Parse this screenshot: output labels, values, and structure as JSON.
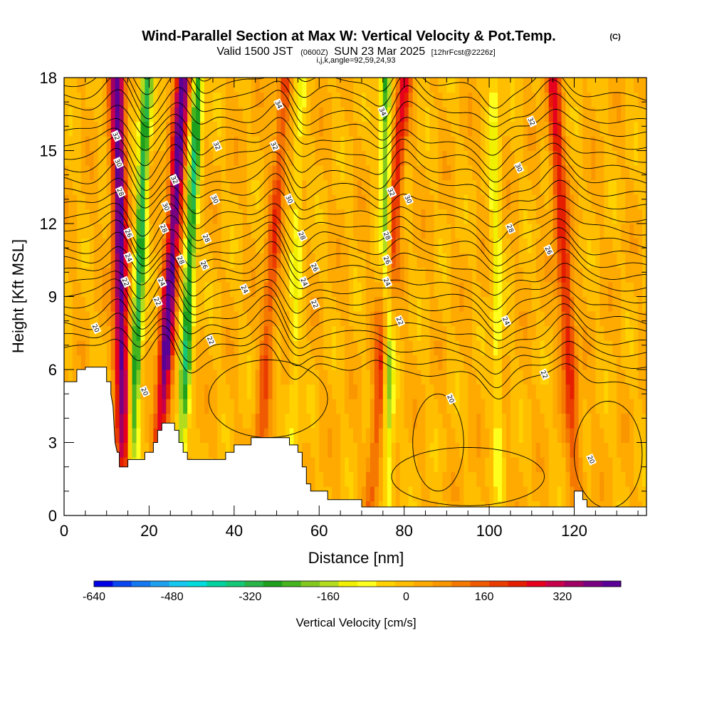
{
  "header": {
    "title": "Wind-Parallel Section at Max W: Vertical Velocity & Pot.Temp.",
    "title_badge": "(C)",
    "valid_prefix": "Valid 1500 JST",
    "valid_zulu": "(0600Z)",
    "valid_date": "SUN 23 Mar 2025",
    "valid_fcst": "[12hrFcst@2226z]",
    "indices": "i,j,k,angle=92,59,24,93"
  },
  "colorbar": {
    "label": "Vertical Velocity [cm/s]",
    "tick_labels": [
      "-640",
      "-480",
      "-320",
      "-160",
      "0",
      "160",
      "320"
    ],
    "tick_values": [
      -640,
      -480,
      -320,
      -160,
      0,
      160,
      320
    ],
    "range": [
      -640,
      440
    ],
    "colors": [
      "#0000e6",
      "#0a46f0",
      "#1478f0",
      "#1ea0f0",
      "#14c8f0",
      "#00dcdc",
      "#00d2a0",
      "#14c878",
      "#28b446",
      "#1ea01e",
      "#46b41e",
      "#82c81e",
      "#b4dc1e",
      "#f0f000",
      "#ffff1e",
      "#ffd200",
      "#ffbe00",
      "#ffaa00",
      "#fa9600",
      "#f57800",
      "#f05a00",
      "#eb3c00",
      "#e61e00",
      "#e6001e",
      "#c8004b",
      "#a00064",
      "#7a0082",
      "#5a0096"
    ]
  },
  "chart_data": {
    "type": "heatmap",
    "title": "Wind-Parallel Section at Max W: Vertical Velocity & Pot.Temp.",
    "xlabel": "Distance [nm]",
    "ylabel": "Height [Kft MSL]",
    "xlim": [
      0,
      137
    ],
    "ylim": [
      0,
      18
    ],
    "x_ticks": [
      0,
      20,
      40,
      60,
      80,
      100,
      120
    ],
    "x_tick_labels": [
      "0",
      "20",
      "40",
      "60",
      "80",
      "100",
      "120"
    ],
    "y_ticks": [
      0,
      3,
      6,
      9,
      12,
      15,
      18
    ],
    "y_tick_labels": [
      "0",
      "3",
      "6",
      "9",
      "12",
      "15",
      "18"
    ],
    "grid": false,
    "terrain": [
      [
        0,
        5.5
      ],
      [
        3,
        5.5
      ],
      [
        3,
        6.0
      ],
      [
        5,
        6.0
      ],
      [
        5,
        6.1
      ],
      [
        10,
        6.1
      ],
      [
        10,
        5.5
      ],
      [
        11,
        5.5
      ],
      [
        11,
        5.0
      ],
      [
        11.5,
        4.5
      ],
      [
        12,
        3.0
      ],
      [
        12.5,
        2.6
      ],
      [
        13,
        2.6
      ],
      [
        13,
        2.0
      ],
      [
        15,
        2.0
      ],
      [
        15,
        2.3
      ],
      [
        19,
        2.3
      ],
      [
        19,
        2.6
      ],
      [
        21,
        2.6
      ],
      [
        21,
        3.0
      ],
      [
        22,
        3.0
      ],
      [
        22,
        3.5
      ],
      [
        23,
        3.5
      ],
      [
        23,
        3.8
      ],
      [
        26,
        3.8
      ],
      [
        26,
        3.5
      ],
      [
        27,
        3.5
      ],
      [
        27,
        3.0
      ],
      [
        28,
        3.0
      ],
      [
        28,
        2.6
      ],
      [
        29,
        2.6
      ],
      [
        29,
        2.3
      ],
      [
        38,
        2.3
      ],
      [
        38,
        2.6
      ],
      [
        40,
        2.6
      ],
      [
        40,
        2.9
      ],
      [
        44,
        2.9
      ],
      [
        44,
        3.2
      ],
      [
        53,
        3.2
      ],
      [
        53,
        2.9
      ],
      [
        55,
        2.9
      ],
      [
        55,
        2.6
      ],
      [
        56,
        2.6
      ],
      [
        56,
        2.0
      ],
      [
        57,
        2.0
      ],
      [
        57,
        1.3
      ],
      [
        58,
        1.3
      ],
      [
        58,
        1.0
      ],
      [
        62,
        1.0
      ],
      [
        62,
        0.65
      ],
      [
        70,
        0.65
      ],
      [
        70,
        0.35
      ],
      [
        120,
        0.35
      ],
      [
        120,
        1.0
      ],
      [
        122,
        1.0
      ],
      [
        122,
        0.65
      ],
      [
        123,
        0.65
      ],
      [
        123,
        0.35
      ],
      [
        137,
        0.35
      ]
    ],
    "updraft_bands": [
      {
        "x_top": 12.5,
        "x_bottom": 14.2,
        "peak_cms": 420
      },
      {
        "x_top": 28.0,
        "x_bottom": 21.5,
        "peak_cms": 420
      },
      {
        "x_top": 52.0,
        "x_bottom": 45.0,
        "peak_cms": 160
      },
      {
        "x_top": 80.0,
        "x_bottom": 72.0,
        "peak_cms": 230
      },
      {
        "x_top": 115.0,
        "x_bottom": 121.0,
        "peak_cms": 230
      }
    ],
    "downdraft_bands": [
      {
        "x_top": 19.5,
        "x_bottom": 15.5,
        "min_cms": -330
      },
      {
        "x_top": 31.5,
        "x_bottom": 27.0,
        "min_cms": -330
      },
      {
        "x_top": 75.5,
        "x_bottom": 76.5,
        "min_cms": -270
      },
      {
        "x_top": 55.5,
        "x_bottom": 53.5,
        "min_cms": -100
      },
      {
        "x_top": 101.0,
        "x_bottom": 102.5,
        "min_cms": -120
      }
    ],
    "contour_labels": [
      {
        "text": "34",
        "x": 50.5,
        "y": 16.9
      },
      {
        "text": "34",
        "x": 75.0,
        "y": 16.6
      },
      {
        "text": "32",
        "x": 12.3,
        "y": 15.6
      },
      {
        "text": "32",
        "x": 36.0,
        "y": 15.2
      },
      {
        "text": "32",
        "x": 49.5,
        "y": 15.2
      },
      {
        "text": "32",
        "x": 110.0,
        "y": 16.2
      },
      {
        "text": "32",
        "x": 26.0,
        "y": 13.8
      },
      {
        "text": "32",
        "x": 77.0,
        "y": 13.3
      },
      {
        "text": "30",
        "x": 12.8,
        "y": 14.5
      },
      {
        "text": "30",
        "x": 35.5,
        "y": 13.0
      },
      {
        "text": "30",
        "x": 53.0,
        "y": 13.0
      },
      {
        "text": "30",
        "x": 81.0,
        "y": 13.0
      },
      {
        "text": "30",
        "x": 107.0,
        "y": 14.3
      },
      {
        "text": "30",
        "x": 24.0,
        "y": 12.7
      },
      {
        "text": "28",
        "x": 13.3,
        "y": 13.3
      },
      {
        "text": "28",
        "x": 23.5,
        "y": 11.8
      },
      {
        "text": "28",
        "x": 33.5,
        "y": 11.4
      },
      {
        "text": "28",
        "x": 56.0,
        "y": 11.5
      },
      {
        "text": "28",
        "x": 76.0,
        "y": 11.5
      },
      {
        "text": "28",
        "x": 105.0,
        "y": 11.8
      },
      {
        "text": "28",
        "x": 27.5,
        "y": 10.5
      },
      {
        "text": "26",
        "x": 15.2,
        "y": 11.6
      },
      {
        "text": "26",
        "x": 33.0,
        "y": 10.3
      },
      {
        "text": "26",
        "x": 59.0,
        "y": 10.2
      },
      {
        "text": "26",
        "x": 76.0,
        "y": 10.5
      },
      {
        "text": "26",
        "x": 114.0,
        "y": 10.9
      },
      {
        "text": "24",
        "x": 15.2,
        "y": 10.6
      },
      {
        "text": "24",
        "x": 23.0,
        "y": 9.6
      },
      {
        "text": "24",
        "x": 42.5,
        "y": 9.3
      },
      {
        "text": "24",
        "x": 56.5,
        "y": 9.6
      },
      {
        "text": "24",
        "x": 76.0,
        "y": 9.6
      },
      {
        "text": "24",
        "x": 104.0,
        "y": 8.0
      },
      {
        "text": "22",
        "x": 14.5,
        "y": 9.6
      },
      {
        "text": "22",
        "x": 22.0,
        "y": 8.8
      },
      {
        "text": "22",
        "x": 59.0,
        "y": 8.7
      },
      {
        "text": "22",
        "x": 79.0,
        "y": 8.0
      },
      {
        "text": "22",
        "x": 34.5,
        "y": 7.2
      },
      {
        "text": "22",
        "x": 113.0,
        "y": 5.8
      },
      {
        "text": "20",
        "x": 7.5,
        "y": 7.7
      },
      {
        "text": "20",
        "x": 19.0,
        "y": 5.1
      },
      {
        "text": "20",
        "x": 91.0,
        "y": 4.8
      },
      {
        "text": "20",
        "x": 124.0,
        "y": 2.3
      }
    ]
  }
}
